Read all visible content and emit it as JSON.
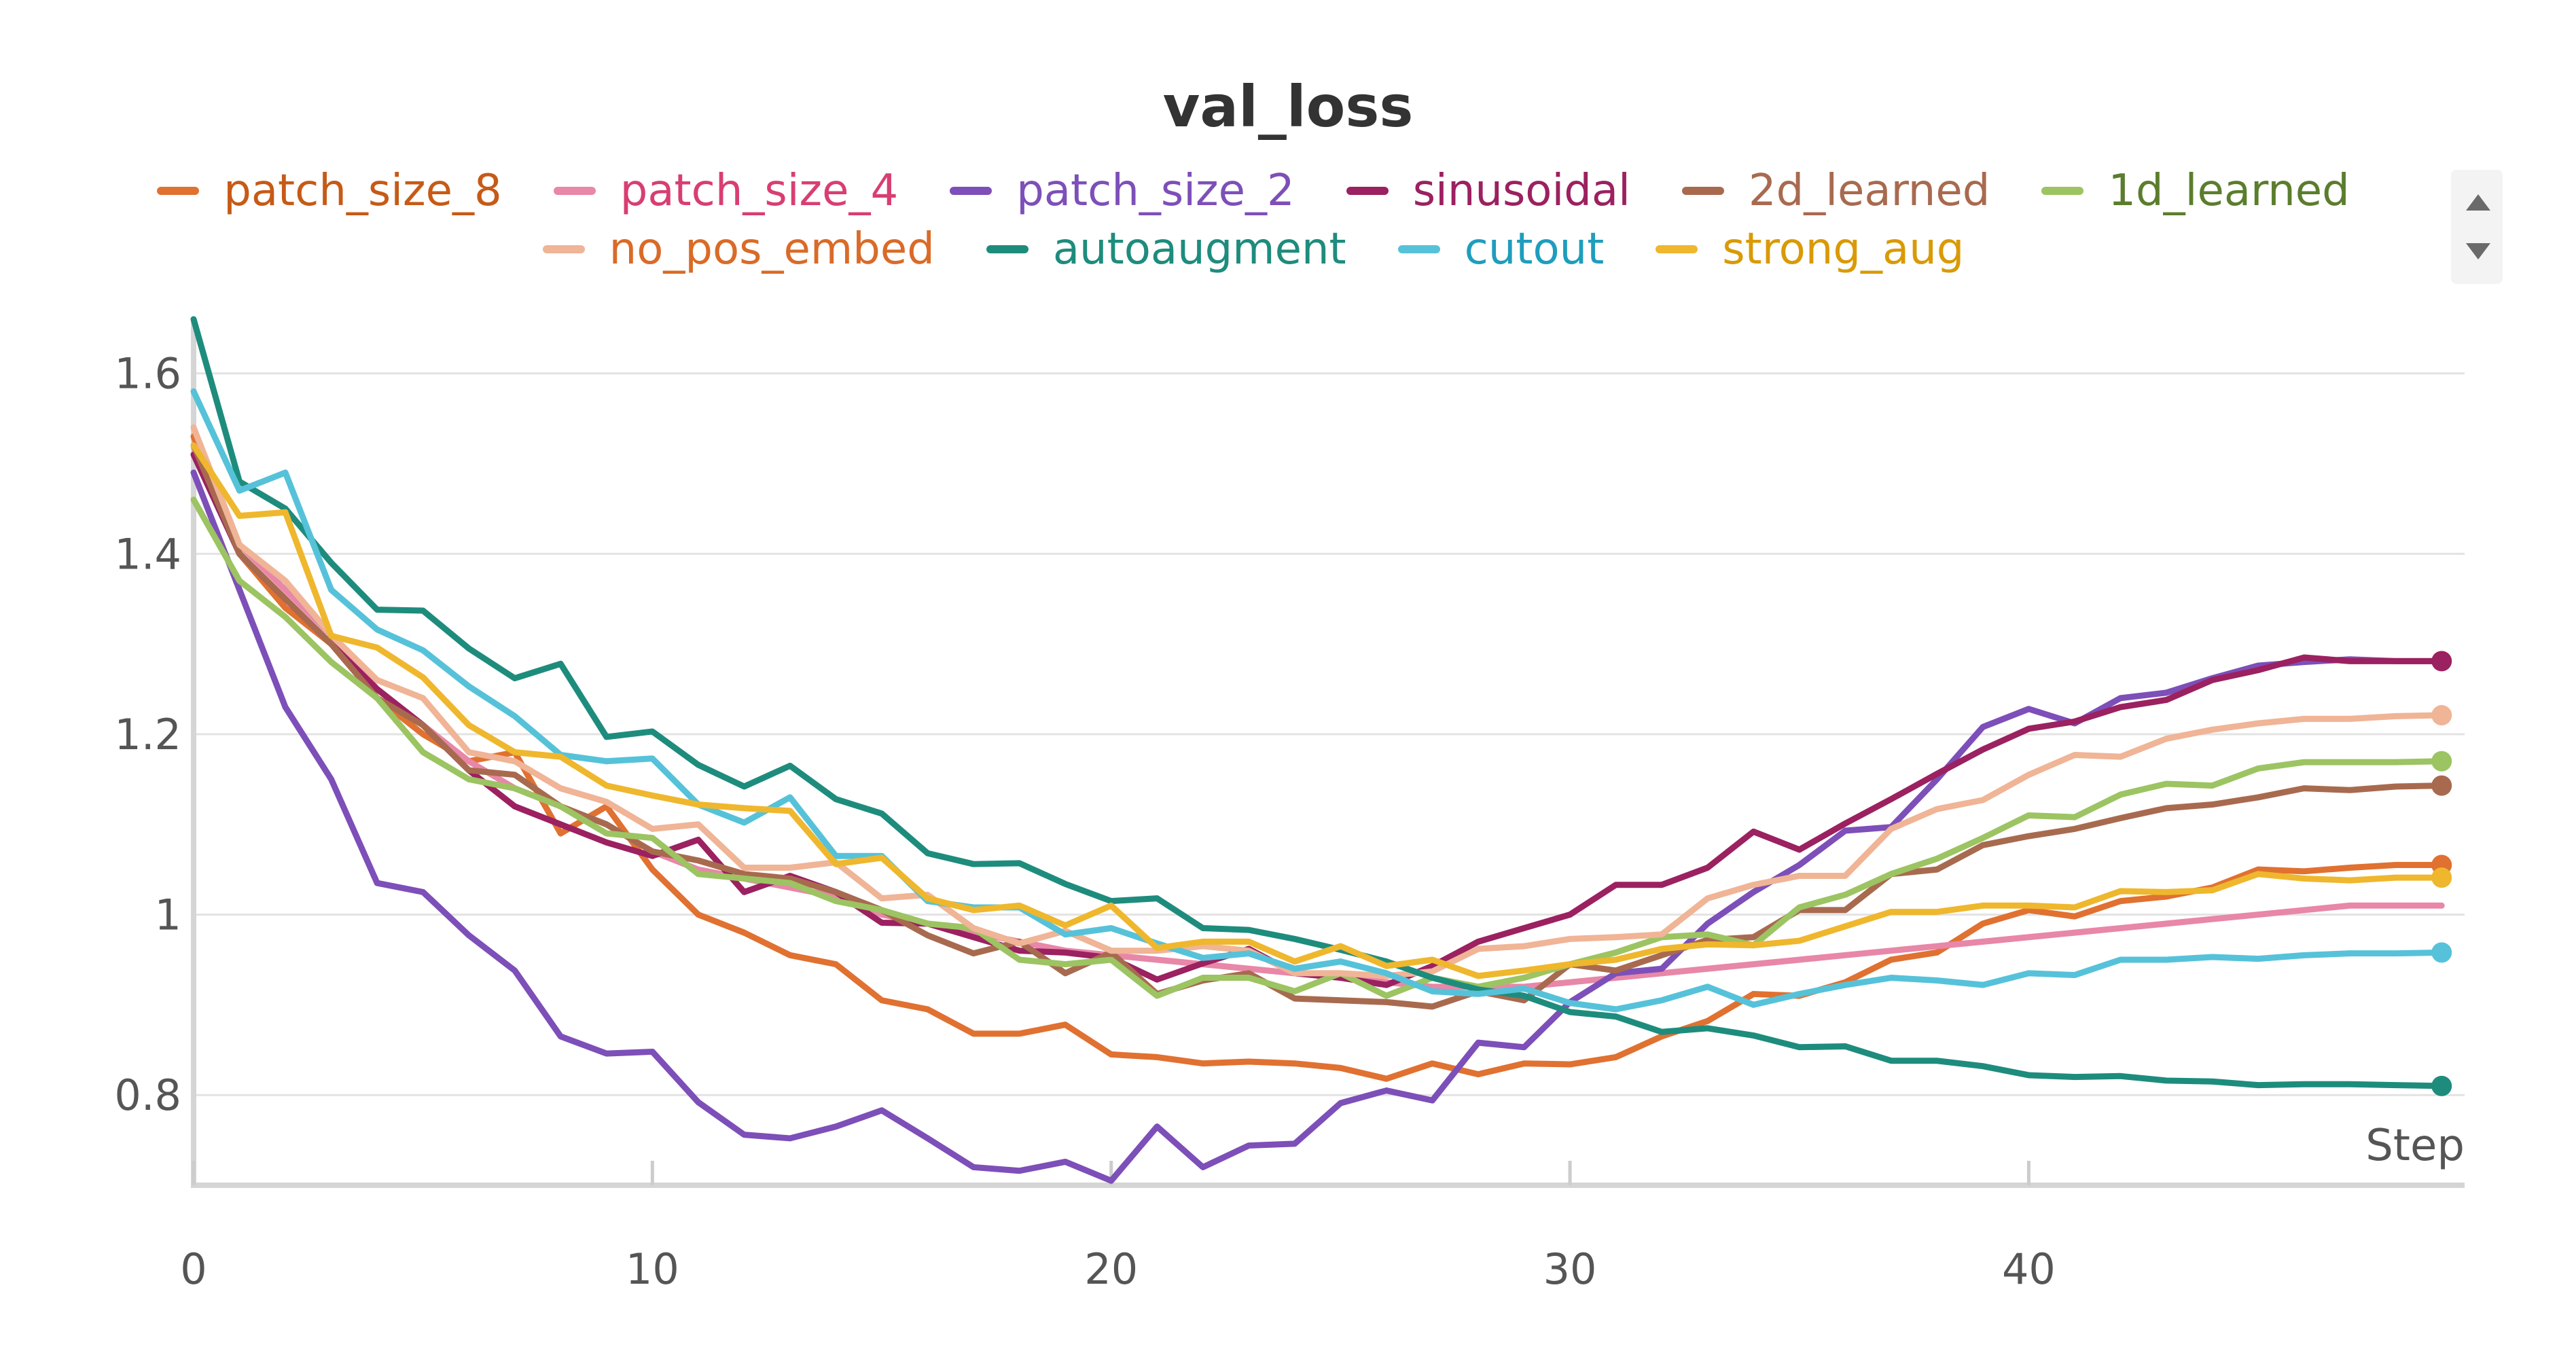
{
  "chart_data": {
    "type": "line",
    "title": "val_loss",
    "xlabel": "Step",
    "ylabel": "",
    "xlim": [
      0,
      49.5
    ],
    "ylim": [
      0.7,
      1.66
    ],
    "x_ticks": [
      "0",
      "10",
      "20",
      "30",
      "40"
    ],
    "y_ticks": [
      "0.8",
      "1",
      "1.2",
      "1.4",
      "1.6"
    ],
    "grid": true,
    "legend_position": "top-center",
    "x": [
      0,
      1,
      2,
      3,
      4,
      5,
      6,
      7,
      8,
      9,
      10,
      11,
      12,
      13,
      14,
      15,
      16,
      17,
      18,
      19,
      20,
      21,
      22,
      23,
      24,
      25,
      26,
      27,
      28,
      29,
      30,
      31,
      32,
      33,
      34,
      35,
      36,
      37,
      38,
      39,
      40,
      41,
      42,
      43,
      44,
      45,
      46,
      47,
      48,
      49
    ],
    "series": [
      {
        "name": "patch_size_8",
        "color": "#e07131",
        "text_color": "#c65a16",
        "end_marker": true,
        "values": [
          1.53,
          1.4,
          1.34,
          1.3,
          1.24,
          1.2,
          1.17,
          1.18,
          1.09,
          1.12,
          1.05,
          1.0,
          0.98,
          0.955,
          0.945,
          0.905,
          0.895,
          0.868,
          0.868,
          0.878,
          0.845,
          0.842,
          0.835,
          0.837,
          0.835,
          0.83,
          0.818,
          0.835,
          0.823,
          0.835,
          0.834,
          0.842,
          0.865,
          0.882,
          0.912,
          0.91,
          0.925,
          0.95,
          0.958,
          0.99,
          1.005,
          0.998,
          1.015,
          1.02,
          1.03,
          1.05,
          1.048,
          1.052,
          1.055,
          1.055
        ]
      },
      {
        "name": "patch_size_4",
        "color": "#e887a8",
        "text_color": "#d83e72",
        "end_marker": false,
        "values": [
          1.52,
          1.41,
          1.36,
          1.31,
          1.25,
          1.21,
          1.17,
          1.14,
          1.12,
          1.1,
          1.07,
          1.05,
          1.04,
          1.03,
          1.02,
          1.0,
          0.99,
          0.98,
          0.97,
          0.96,
          0.955,
          0.95,
          0.945,
          0.94,
          0.935,
          0.93,
          0.925,
          0.92,
          0.92,
          0.92,
          0.925,
          0.93,
          0.935,
          0.94,
          0.945,
          0.95,
          0.955,
          0.96,
          0.965,
          0.97,
          0.975,
          0.98,
          0.985,
          0.99,
          0.995,
          1.0,
          1.005,
          1.01,
          1.01,
          1.01
        ]
      },
      {
        "name": "patch_size_2",
        "color": "#7d4fb8",
        "text_color": "#7d4fb8",
        "end_marker": false,
        "values": [
          1.49,
          1.36,
          1.23,
          1.15,
          1.035,
          1.025,
          0.977,
          0.938,
          0.865,
          0.846,
          0.848,
          0.792,
          0.756,
          0.752,
          0.765,
          0.783,
          0.752,
          0.72,
          0.716,
          0.726,
          0.705,
          0.765,
          0.72,
          0.744,
          0.746,
          0.791,
          0.805,
          0.794,
          0.858,
          0.853,
          0.903,
          0.935,
          0.94,
          0.99,
          1.025,
          1.055,
          1.093,
          1.097,
          1.15,
          1.208,
          1.228,
          1.212,
          1.24,
          1.246,
          1.262,
          1.276,
          1.28,
          1.283,
          1.281,
          1.281
        ]
      },
      {
        "name": "sinusoidal",
        "color": "#9b2160",
        "text_color": "#9b2160",
        "end_marker": true,
        "values": [
          1.51,
          1.4,
          1.35,
          1.3,
          1.25,
          1.21,
          1.16,
          1.12,
          1.1,
          1.08,
          1.065,
          1.083,
          1.025,
          1.043,
          1.025,
          0.991,
          0.99,
          0.975,
          0.96,
          0.958,
          0.952,
          0.928,
          0.946,
          0.962,
          0.935,
          0.93,
          0.922,
          0.943,
          0.97,
          0.985,
          1.0,
          1.033,
          1.033,
          1.052,
          1.092,
          1.072,
          1.101,
          1.128,
          1.156,
          1.183,
          1.206,
          1.214,
          1.23,
          1.238,
          1.26,
          1.271,
          1.285,
          1.281,
          1.281,
          1.281
        ]
      },
      {
        "name": "2d_learned",
        "color": "#a86a4f",
        "text_color": "#a86a4f",
        "end_marker": true,
        "values": [
          1.52,
          1.4,
          1.35,
          1.3,
          1.24,
          1.21,
          1.16,
          1.155,
          1.12,
          1.1,
          1.07,
          1.06,
          1.045,
          1.04,
          1.025,
          1.005,
          0.977,
          0.957,
          0.97,
          0.935,
          0.958,
          0.912,
          0.927,
          0.935,
          0.907,
          0.905,
          0.903,
          0.898,
          0.915,
          0.905,
          0.945,
          0.938,
          0.955,
          0.972,
          0.975,
          1.005,
          1.005,
          1.045,
          1.05,
          1.077,
          1.087,
          1.095,
          1.107,
          1.118,
          1.122,
          1.13,
          1.14,
          1.138,
          1.142,
          1.143
        ]
      },
      {
        "name": "1d_learned",
        "color": "#9cc462",
        "text_color": "#5b7d2d",
        "end_marker": true,
        "values": [
          1.46,
          1.37,
          1.33,
          1.28,
          1.24,
          1.18,
          1.15,
          1.14,
          1.12,
          1.09,
          1.085,
          1.045,
          1.04,
          1.035,
          1.015,
          1.005,
          0.99,
          0.985,
          0.95,
          0.945,
          0.95,
          0.91,
          0.93,
          0.93,
          0.915,
          0.935,
          0.91,
          0.93,
          0.92,
          0.93,
          0.945,
          0.958,
          0.975,
          0.978,
          0.966,
          1.008,
          1.022,
          1.045,
          1.062,
          1.085,
          1.11,
          1.108,
          1.133,
          1.145,
          1.143,
          1.162,
          1.169,
          1.169,
          1.169,
          1.17
        ]
      },
      {
        "name": "no_pos_embed",
        "color": "#f0b496",
        "text_color": "#d96b28",
        "end_marker": true,
        "values": [
          1.54,
          1.41,
          1.37,
          1.31,
          1.26,
          1.24,
          1.18,
          1.17,
          1.14,
          1.125,
          1.095,
          1.1,
          1.052,
          1.052,
          1.058,
          1.018,
          1.022,
          0.985,
          0.968,
          0.982,
          0.96,
          0.96,
          0.965,
          0.96,
          0.935,
          0.935,
          0.932,
          0.937,
          0.962,
          0.965,
          0.973,
          0.975,
          0.978,
          1.018,
          1.033,
          1.043,
          1.043,
          1.095,
          1.117,
          1.127,
          1.155,
          1.177,
          1.175,
          1.195,
          1.205,
          1.212,
          1.217,
          1.217,
          1.22,
          1.221
        ]
      },
      {
        "name": "autoaugment",
        "color": "#1e8c7d",
        "text_color": "#1e8c7d",
        "end_marker": true,
        "values": [
          1.66,
          1.48,
          1.45,
          1.39,
          1.338,
          1.337,
          1.295,
          1.262,
          1.278,
          1.197,
          1.203,
          1.166,
          1.142,
          1.165,
          1.128,
          1.112,
          1.068,
          1.056,
          1.057,
          1.034,
          1.015,
          1.018,
          0.985,
          0.983,
          0.973,
          0.961,
          0.948,
          0.93,
          0.917,
          0.91,
          0.892,
          0.887,
          0.87,
          0.874,
          0.866,
          0.853,
          0.854,
          0.838,
          0.838,
          0.832,
          0.822,
          0.82,
          0.821,
          0.816,
          0.815,
          0.811,
          0.812,
          0.812,
          0.811,
          0.81
        ]
      },
      {
        "name": "cutout",
        "color": "#56c2d9",
        "text_color": "#1f9dbd",
        "end_marker": true,
        "values": [
          1.58,
          1.47,
          1.49,
          1.36,
          1.316,
          1.293,
          1.253,
          1.22,
          1.177,
          1.17,
          1.173,
          1.122,
          1.102,
          1.13,
          1.065,
          1.065,
          1.015,
          1.008,
          1.008,
          0.978,
          0.985,
          0.968,
          0.952,
          0.957,
          0.94,
          0.948,
          0.935,
          0.915,
          0.912,
          0.918,
          0.902,
          0.895,
          0.905,
          0.92,
          0.9,
          0.912,
          0.922,
          0.93,
          0.927,
          0.922,
          0.935,
          0.933,
          0.95,
          0.95,
          0.953,
          0.951,
          0.955,
          0.957,
          0.957,
          0.958
        ]
      },
      {
        "name": "strong_aug",
        "color": "#efb72d",
        "text_color": "#d99a06",
        "end_marker": true,
        "values": [
          1.52,
          1.442,
          1.446,
          1.309,
          1.296,
          1.263,
          1.21,
          1.18,
          1.175,
          1.143,
          1.132,
          1.122,
          1.118,
          1.115,
          1.056,
          1.063,
          1.018,
          1.005,
          1.01,
          0.988,
          1.01,
          0.963,
          0.97,
          0.97,
          0.948,
          0.965,
          0.943,
          0.95,
          0.932,
          0.938,
          0.945,
          0.95,
          0.962,
          0.967,
          0.966,
          0.971,
          0.987,
          1.003,
          1.003,
          1.01,
          1.01,
          1.008,
          1.026,
          1.025,
          1.027,
          1.045,
          1.04,
          1.038,
          1.041,
          1.041
        ]
      }
    ]
  }
}
